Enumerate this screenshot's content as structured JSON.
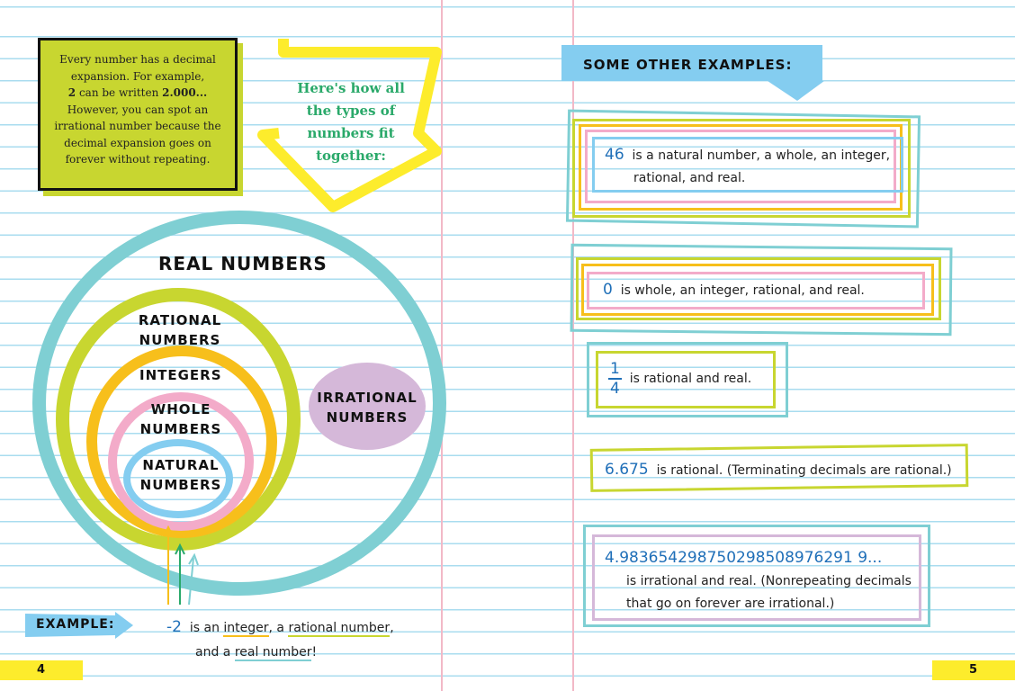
{
  "left_page": {
    "info_box": {
      "line1": "Every number has a decimal expansion. For example,",
      "bold_a": "2",
      "mid": " can be written ",
      "bold_b": "2.000...",
      "line3": "However, you can spot an irrational number because the decimal expansion goes on forever without repeating."
    },
    "arrow_caption": "Here's how all the types of numbers fit together:",
    "diagram": {
      "real": "REAL NUMBERS",
      "rational": "RATIONAL NUMBERS",
      "integers": "INTEGERS",
      "whole": "WHOLE NUMBERS",
      "natural": "NATURAL NUMBERS",
      "irrational": "IRRATIONAL NUMBERS"
    },
    "example": {
      "label": "EXAMPLE:",
      "number": "-2",
      "t1": "is an ",
      "u1": "integer",
      "t2": ", a ",
      "u2": "rational number",
      "t3": ",",
      "t4": "and a ",
      "u3": "real number",
      "t5": "!"
    },
    "page_number": "4"
  },
  "right_page": {
    "heading": "SOME OTHER EXAMPLES:",
    "examples": [
      {
        "number": "46",
        "text": "is a natural number, a whole, an integer,",
        "text2": "rational, and real."
      },
      {
        "number": "0",
        "text": "is whole, an integer, rational, and real."
      },
      {
        "numerator": "1",
        "denominator": "4",
        "text": "is rational and real."
      },
      {
        "number": "6.675",
        "text": "is rational. (Terminating decimals are rational.)"
      },
      {
        "number": "4.983654298750298508976291 9...",
        "text": "is irrational and real. (Nonrepeating decimals",
        "text2": "that go on forever are irrational.)"
      }
    ],
    "page_number": "5"
  },
  "colors": {
    "teal": "#7fcfd3",
    "lime": "#c8d630",
    "orange": "#f7bf1b",
    "pink": "#f3abc9",
    "blue": "#84cdf0",
    "purple": "#d5b8d9",
    "yellow": "#fdec2c",
    "number_blue": "#1f6fb8",
    "caption_green": "#2aa96a"
  }
}
